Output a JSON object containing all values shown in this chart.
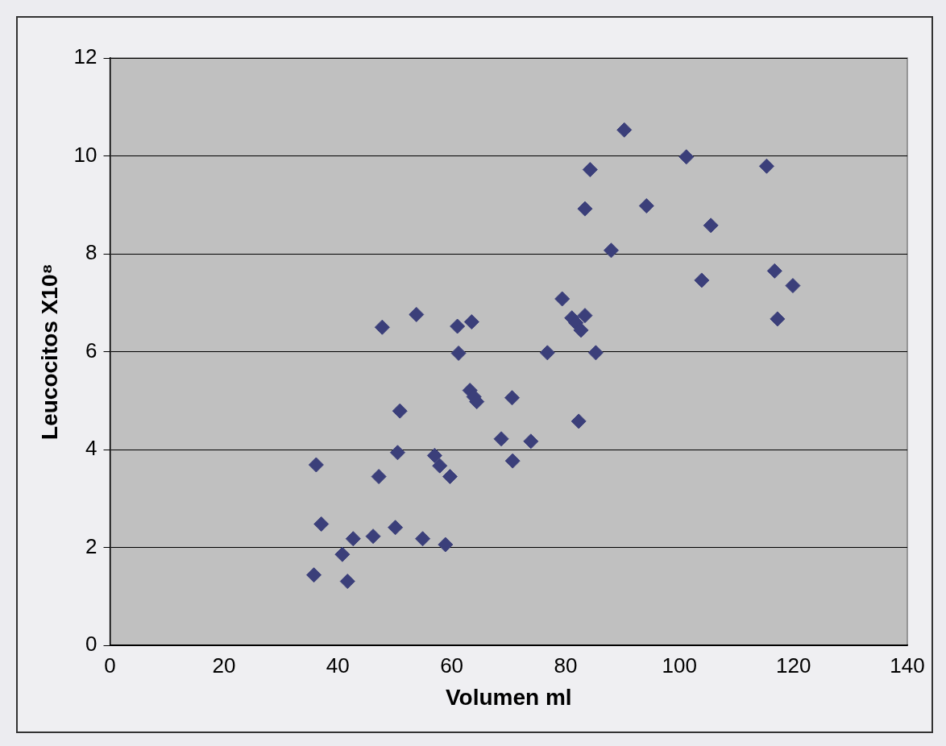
{
  "chart_data": {
    "type": "scatter",
    "xlabel": "Volumen ml",
    "ylabel": "Leucocitos X10⁸",
    "xlim": [
      0,
      140
    ],
    "xticks": [
      0,
      20,
      40,
      60,
      80,
      100,
      120,
      140
    ],
    "ylim": [
      0,
      12
    ],
    "yticks": [
      0,
      2,
      4,
      6,
      8,
      10,
      12
    ],
    "grid": "y",
    "legend": false,
    "marker": "diamond",
    "series": [
      {
        "color": "#3b3f7a",
        "x": [
          35.8,
          36.2,
          37.1,
          40.8,
          41.7,
          42.7,
          46.2,
          47.2,
          47.8,
          50.1,
          50.5,
          50.9,
          53.8,
          54.9,
          57.0,
          57.9,
          58.9,
          59.7,
          61.0,
          61.2,
          63.5,
          63.2,
          63.9,
          64.4,
          68.7,
          70.6,
          70.7,
          73.9,
          76.8,
          79.4,
          81.1,
          81.8,
          82.3,
          82.7,
          83.4,
          83.4,
          84.3,
          85.3,
          88.0,
          90.3,
          94.2,
          101.2,
          103.9,
          105.5,
          115.3,
          116.7,
          117.2,
          119.9
        ],
        "values": [
          1.44,
          3.69,
          2.48,
          1.86,
          1.31,
          2.18,
          2.23,
          3.45,
          6.5,
          2.41,
          3.94,
          4.79,
          6.76,
          2.18,
          3.88,
          3.67,
          2.06,
          3.45,
          6.52,
          5.97,
          6.61,
          5.21,
          5.08,
          4.98,
          4.22,
          5.06,
          3.77,
          4.17,
          5.98,
          7.08,
          6.69,
          6.59,
          4.58,
          6.44,
          6.74,
          8.92,
          9.72,
          5.98,
          8.07,
          10.53,
          8.98,
          9.98,
          7.46,
          8.58,
          9.79,
          7.65,
          6.67,
          7.35
        ]
      }
    ]
  }
}
